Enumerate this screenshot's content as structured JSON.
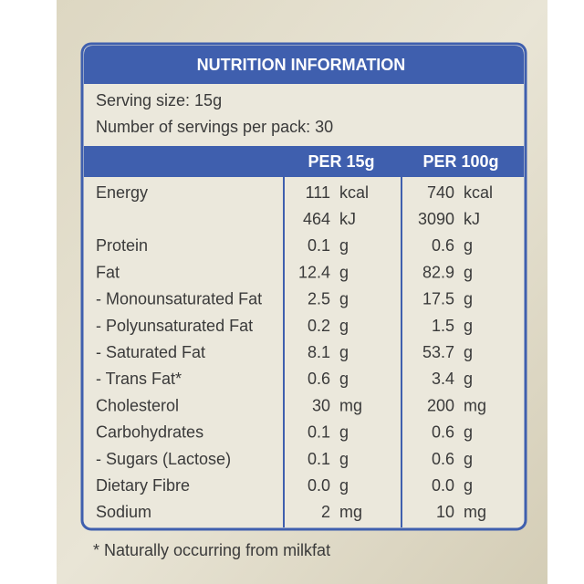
{
  "title": "NUTRITION INFORMATION",
  "serving_size": "Serving size: 15g",
  "servings_per_pack": "Number of servings per pack: 30",
  "columns": [
    "PER 15g",
    "PER 100g"
  ],
  "rows": [
    {
      "name": "Energy",
      "per_15g": [
        {
          "value": "111",
          "unit": "kcal"
        },
        {
          "value": "464",
          "unit": "kJ"
        }
      ],
      "per_100g": [
        {
          "value": "740",
          "unit": "kcal"
        },
        {
          "value": "3090",
          "unit": "kJ"
        }
      ]
    },
    {
      "name": "Protein",
      "per_15g": [
        {
          "value": "0.1",
          "unit": "g"
        }
      ],
      "per_100g": [
        {
          "value": "0.6",
          "unit": "g"
        }
      ]
    },
    {
      "name": "Fat",
      "per_15g": [
        {
          "value": "12.4",
          "unit": "g"
        }
      ],
      "per_100g": [
        {
          "value": "82.9",
          "unit": "g"
        }
      ]
    },
    {
      "name": "- Monounsaturated Fat",
      "per_15g": [
        {
          "value": "2.5",
          "unit": "g"
        }
      ],
      "per_100g": [
        {
          "value": "17.5",
          "unit": "g"
        }
      ]
    },
    {
      "name": "- Polyunsaturated Fat",
      "per_15g": [
        {
          "value": "0.2",
          "unit": "g"
        }
      ],
      "per_100g": [
        {
          "value": "1.5",
          "unit": "g"
        }
      ]
    },
    {
      "name": "- Saturated Fat",
      "per_15g": [
        {
          "value": "8.1",
          "unit": "g"
        }
      ],
      "per_100g": [
        {
          "value": "53.7",
          "unit": "g"
        }
      ]
    },
    {
      "name": "- Trans Fat*",
      "per_15g": [
        {
          "value": "0.6",
          "unit": "g"
        }
      ],
      "per_100g": [
        {
          "value": "3.4",
          "unit": "g"
        }
      ]
    },
    {
      "name": "Cholesterol",
      "per_15g": [
        {
          "value": "30",
          "unit": "mg"
        }
      ],
      "per_100g": [
        {
          "value": "200",
          "unit": "mg"
        }
      ]
    },
    {
      "name": "Carbohydrates",
      "per_15g": [
        {
          "value": "0.1",
          "unit": "g"
        }
      ],
      "per_100g": [
        {
          "value": "0.6",
          "unit": "g"
        }
      ]
    },
    {
      "name": "- Sugars (Lactose)",
      "per_15g": [
        {
          "value": "0.1",
          "unit": "g"
        }
      ],
      "per_100g": [
        {
          "value": "0.6",
          "unit": "g"
        }
      ]
    },
    {
      "name": "Dietary Fibre",
      "per_15g": [
        {
          "value": "0.0",
          "unit": "g"
        }
      ],
      "per_100g": [
        {
          "value": "0.0",
          "unit": "g"
        }
      ]
    },
    {
      "name": "Sodium",
      "per_15g": [
        {
          "value": "2",
          "unit": "mg"
        }
      ],
      "per_100g": [
        {
          "value": "10",
          "unit": "mg"
        }
      ]
    }
  ],
  "footnote": "* Naturally occurring from milkfat"
}
